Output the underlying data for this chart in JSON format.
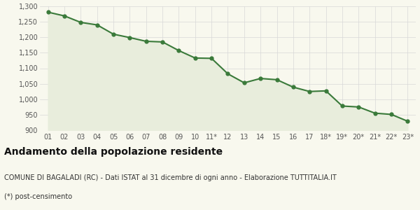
{
  "labels": [
    "01",
    "02",
    "03",
    "04",
    "05",
    "06",
    "07",
    "08",
    "09",
    "10",
    "11*",
    "12",
    "13",
    "14",
    "15",
    "16",
    "17",
    "18*",
    "19*",
    "20*",
    "21*",
    "22*",
    "23*"
  ],
  "plot_values": [
    1281,
    1269,
    1248,
    1240,
    1210,
    1199,
    1187,
    1185,
    1157,
    1133,
    1132,
    1082,
    1053,
    1067,
    1063,
    1039,
    1025,
    1027,
    978,
    975,
    955,
    951,
    929
  ],
  "line_color": "#3a7a3a",
  "fill_color": "#e8eddc",
  "marker_color": "#3a7a3a",
  "bg_color": "#f8f8ee",
  "grid_color": "#d8d8d8",
  "ylim": [
    900,
    1300
  ],
  "yticks": [
    900,
    950,
    1000,
    1050,
    1100,
    1150,
    1200,
    1250,
    1300
  ],
  "title": "Andamento della popolazione residente",
  "subtitle": "COMUNE DI BAGALADI (RC) - Dati ISTAT al 31 dicembre di ogni anno - Elaborazione TUTTITALIA.IT",
  "footnote": "(*) post-censimento",
  "title_fontsize": 10,
  "subtitle_fontsize": 7,
  "footnote_fontsize": 7,
  "tick_fontsize": 7,
  "line_width": 1.5,
  "marker_size": 3.5
}
